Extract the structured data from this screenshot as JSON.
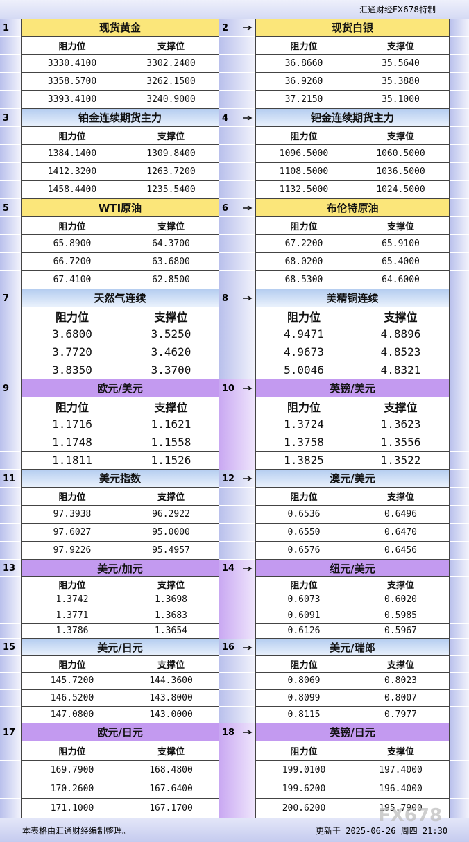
{
  "header": {
    "title": "汇通财经FX678特制"
  },
  "blocks": [
    {
      "number": "1",
      "title": "现货黄金",
      "columns": [
        "阻力位",
        "支撑位"
      ],
      "rows": [
        [
          "3330.4100",
          "3302.2400"
        ],
        [
          "3358.5700",
          "3262.1500"
        ],
        [
          "3393.4100",
          "3240.9000"
        ]
      ]
    },
    {
      "number": "2",
      "title": "现货白银",
      "columns": [
        "阻力位",
        "支撑位"
      ],
      "rows": [
        [
          "36.8660",
          "35.5640"
        ],
        [
          "36.9260",
          "35.3880"
        ],
        [
          "37.2150",
          "35.1000"
        ]
      ]
    },
    {
      "number": "3",
      "title": "铂金连续期货主力",
      "columns": [
        "阻力位",
        "支撑位"
      ],
      "rows": [
        [
          "1384.1400",
          "1309.8400"
        ],
        [
          "1412.3200",
          "1263.7200"
        ],
        [
          "1458.4400",
          "1235.5400"
        ]
      ]
    },
    {
      "number": "4",
      "title": "钯金连续期货主力",
      "columns": [
        "阻力位",
        "支撑位"
      ],
      "rows": [
        [
          "1096.5000",
          "1060.5000"
        ],
        [
          "1108.5000",
          "1036.5000"
        ],
        [
          "1132.5000",
          "1024.5000"
        ]
      ]
    },
    {
      "number": "5",
      "title": "WTI原油",
      "columns": [
        "阻力位",
        "支撑位"
      ],
      "rows": [
        [
          "65.8900",
          "64.3700"
        ],
        [
          "66.7200",
          "63.6800"
        ],
        [
          "67.4100",
          "62.8500"
        ]
      ]
    },
    {
      "number": "6",
      "title": "布伦特原油",
      "columns": [
        "阻力位",
        "支撑位"
      ],
      "rows": [
        [
          "67.2200",
          "65.9100"
        ],
        [
          "68.0200",
          "65.4000"
        ],
        [
          "68.5300",
          "64.6000"
        ]
      ]
    },
    {
      "number": "7",
      "title": "天然气连续",
      "columns": [
        "阻力位",
        "支撑位"
      ],
      "rows": [
        [
          "3.6800",
          "3.5250"
        ],
        [
          "3.7720",
          "3.4620"
        ],
        [
          "3.8350",
          "3.3700"
        ]
      ]
    },
    {
      "number": "8",
      "title": "美精铜连续",
      "columns": [
        "阻力位",
        "支撑位"
      ],
      "rows": [
        [
          "4.9471",
          "4.8896"
        ],
        [
          "4.9673",
          "4.8523"
        ],
        [
          "5.0046",
          "4.8321"
        ]
      ]
    },
    {
      "number": "9",
      "title": "欧元/美元",
      "columns": [
        "阻力位",
        "支撑位"
      ],
      "rows": [
        [
          "1.1716",
          "1.1621"
        ],
        [
          "1.1748",
          "1.1558"
        ],
        [
          "1.1811",
          "1.1526"
        ]
      ]
    },
    {
      "number": "10",
      "title": "英镑/美元",
      "columns": [
        "阻力位",
        "支撑位"
      ],
      "rows": [
        [
          "1.3724",
          "1.3623"
        ],
        [
          "1.3758",
          "1.3556"
        ],
        [
          "1.3825",
          "1.3522"
        ]
      ]
    },
    {
      "number": "11",
      "title": "美元指数",
      "columns": [
        "阻力位",
        "支撑位"
      ],
      "rows": [
        [
          "97.3938",
          "96.2922"
        ],
        [
          "97.6027",
          "95.0000"
        ],
        [
          "97.9226",
          "95.4957"
        ]
      ]
    },
    {
      "number": "12",
      "title": "澳元/美元",
      "columns": [
        "阻力位",
        "支撑位"
      ],
      "rows": [
        [
          "0.6536",
          "0.6496"
        ],
        [
          "0.6550",
          "0.6470"
        ],
        [
          "0.6576",
          "0.6456"
        ]
      ]
    },
    {
      "number": "13",
      "title": "美元/加元",
      "columns": [
        "阻力位",
        "支撑位"
      ],
      "rows": [
        [
          "1.3742",
          "1.3698"
        ],
        [
          "1.3771",
          "1.3683"
        ],
        [
          "1.3786",
          "1.3654"
        ]
      ]
    },
    {
      "number": "14",
      "title": "纽元/美元",
      "columns": [
        "阻力位",
        "支撑位"
      ],
      "rows": [
        [
          "0.6073",
          "0.6020"
        ],
        [
          "0.6091",
          "0.5985"
        ],
        [
          "0.6126",
          "0.5967"
        ]
      ]
    },
    {
      "number": "15",
      "title": "美元/日元",
      "columns": [
        "阻力位",
        "支撑位"
      ],
      "rows": [
        [
          "145.7200",
          "144.3600"
        ],
        [
          "146.5200",
          "143.8000"
        ],
        [
          "147.0800",
          "143.0000"
        ]
      ]
    },
    {
      "number": "16",
      "title": "美元/瑞郎",
      "columns": [
        "阻力位",
        "支撑位"
      ],
      "rows": [
        [
          "0.8069",
          "0.8023"
        ],
        [
          "0.8099",
          "0.8007"
        ],
        [
          "0.8115",
          "0.7977"
        ]
      ]
    },
    {
      "number": "17",
      "title": "欧元/日元",
      "columns": [
        "阻力位",
        "支撑位"
      ],
      "rows": [
        [
          "169.7900",
          "168.4800"
        ],
        [
          "170.2600",
          "167.6400"
        ],
        [
          "171.1000",
          "167.1700"
        ]
      ]
    },
    {
      "number": "18",
      "title": "英镑/日元",
      "columns": [
        "阻力位",
        "支撑位"
      ],
      "rows": [
        [
          "199.0100",
          "197.4000"
        ],
        [
          "199.6200",
          "196.4000"
        ],
        [
          "200.6200",
          "195.7900"
        ]
      ]
    }
  ],
  "footer": {
    "note": "本表格由汇通财经编制整理。",
    "updated": "更新于 2025-06-26 周四 21:30"
  },
  "watermark": "FX678"
}
